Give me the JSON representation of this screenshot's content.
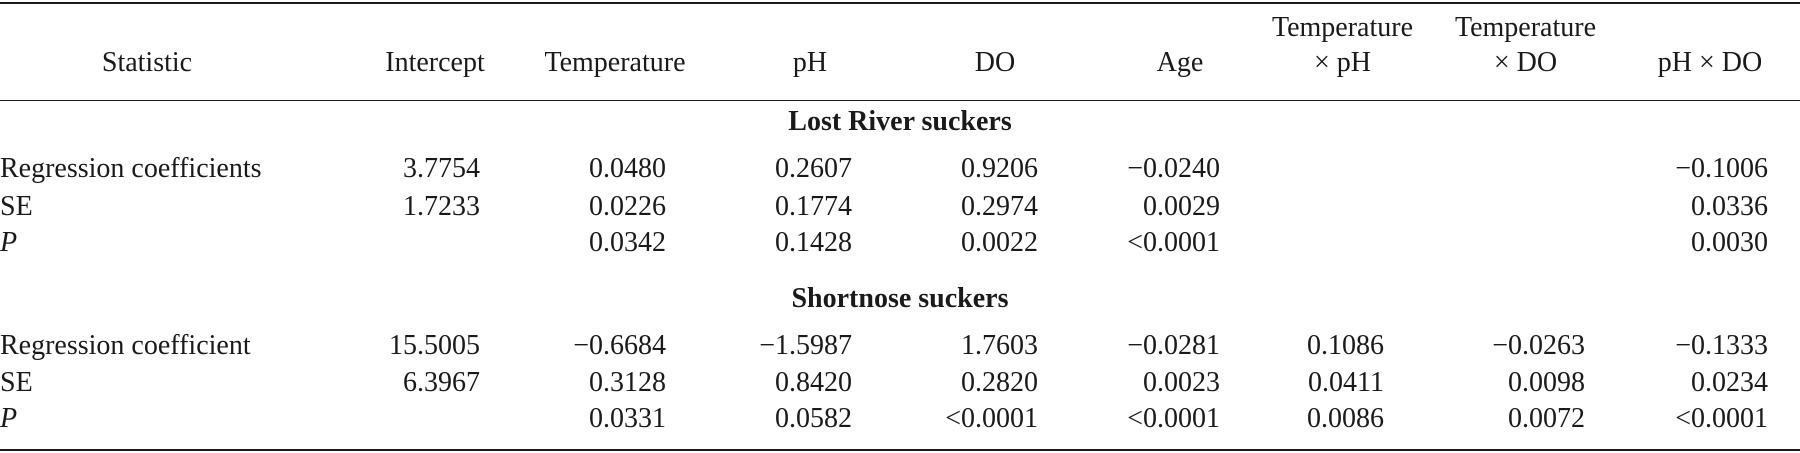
{
  "columns": [
    "Statistic",
    "Intercept",
    "Temperature",
    "pH",
    "DO",
    "Age",
    "Temperature × pH",
    "Temperature × DO",
    "pH × DO"
  ],
  "header": {
    "statistic": "Statistic",
    "intercept": "Intercept",
    "temperature": "Temperature",
    "ph": "pH",
    "do": "DO",
    "age": "Age",
    "temp_ph_line1": "Temperature",
    "temp_ph_line2": "× pH",
    "temp_do_line1": "Temperature",
    "temp_do_line2": "× DO",
    "ph_do": "pH × DO"
  },
  "groups": [
    {
      "title": "Lost River suckers",
      "rows": [
        {
          "label": "Regression coefficients",
          "values": [
            "3.7754",
            "0.0480",
            "0.2607",
            "0.9206",
            "−0.0240",
            "",
            "",
            "−0.1006"
          ]
        },
        {
          "label": "SE",
          "values": [
            "1.7233",
            "0.0226",
            "0.1774",
            "0.2974",
            "0.0029",
            "",
            "",
            "0.0336"
          ]
        },
        {
          "label": "P",
          "values": [
            "",
            "0.0342",
            "0.1428",
            "0.0022",
            "<0.0001",
            "",
            "",
            "0.0030"
          ]
        }
      ]
    },
    {
      "title": "Shortnose suckers",
      "rows": [
        {
          "label": "Regression coefficient",
          "values": [
            "15.5005",
            "−0.6684",
            "−1.5987",
            "1.7603",
            "−0.0281",
            "0.1086",
            "−0.0263",
            "−0.1333"
          ]
        },
        {
          "label": "SE",
          "values": [
            "6.3967",
            "0.3128",
            "0.8420",
            "0.2820",
            "0.0023",
            "0.0411",
            "0.0098",
            "0.0234"
          ]
        },
        {
          "label": "P",
          "values": [
            "",
            "0.0331",
            "0.0582",
            "<0.0001",
            "<0.0001",
            "0.0086",
            "0.0072",
            "<0.0001"
          ]
        }
      ]
    }
  ]
}
